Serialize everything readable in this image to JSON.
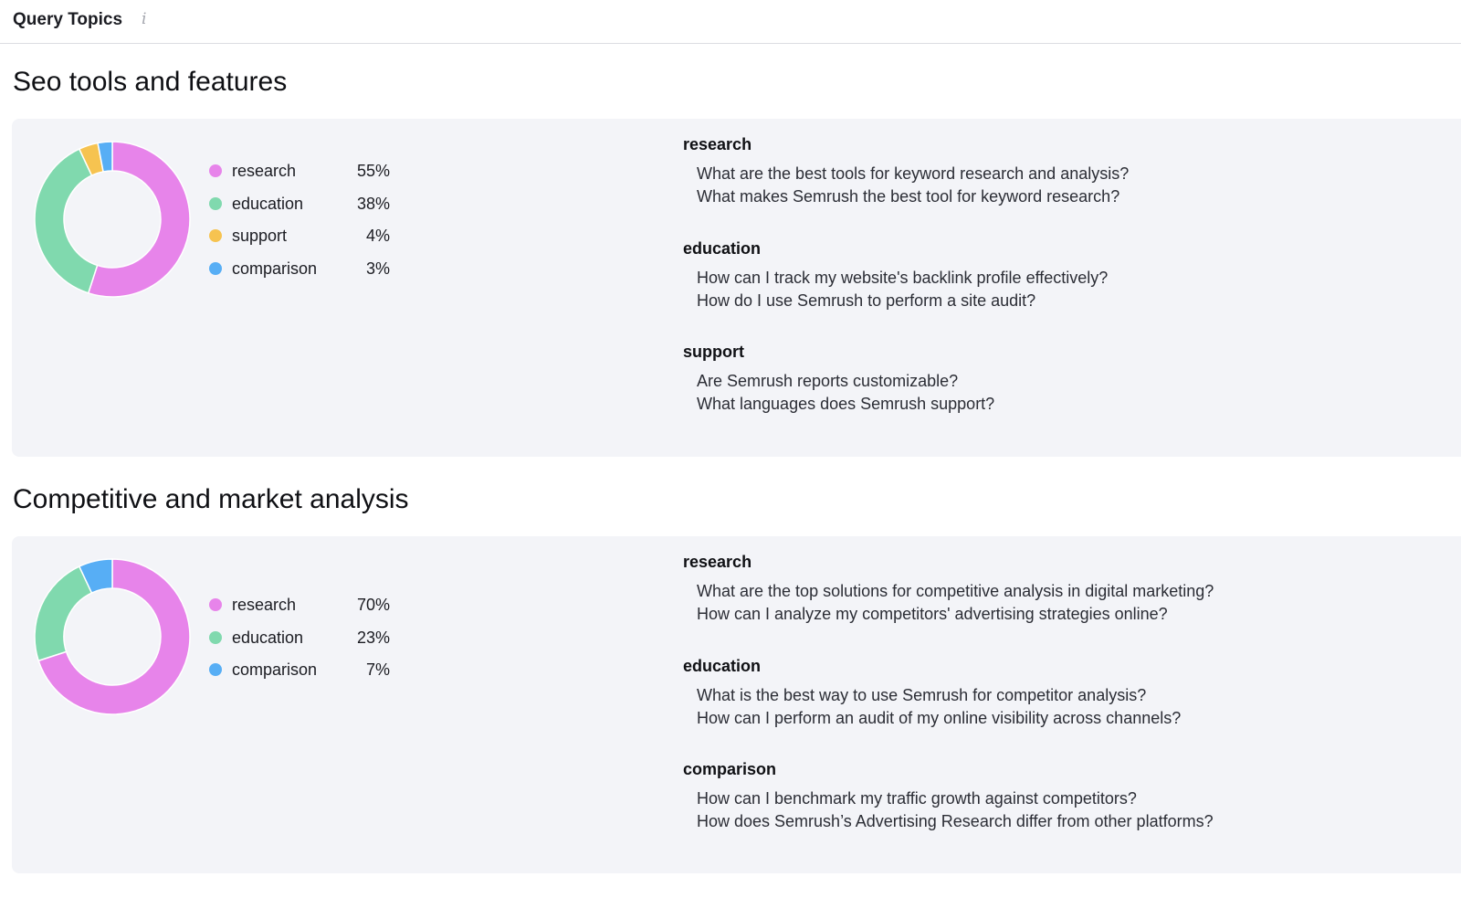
{
  "header": {
    "title": "Query Topics",
    "info_icon": "info-icon"
  },
  "sections": [
    {
      "title": "Seo tools and features",
      "legend": [
        {
          "label": "research",
          "value": "55%",
          "color": "#e784ea"
        },
        {
          "label": "education",
          "value": "38%",
          "color": "#80d9ae"
        },
        {
          "label": "support",
          "value": "4%",
          "color": "#f6c350"
        },
        {
          "label": "comparison",
          "value": "3%",
          "color": "#57aef5"
        }
      ],
      "groups": [
        {
          "title": "research",
          "items": [
            "What are the best tools for keyword research and analysis?",
            "What makes Semrush the best tool for keyword research?"
          ]
        },
        {
          "title": "education",
          "items": [
            "How can I track my website's backlink profile effectively?",
            "How do I use Semrush to perform a site audit?"
          ]
        },
        {
          "title": "support",
          "items": [
            "Are Semrush reports customizable?",
            "What languages does Semrush support?"
          ]
        }
      ]
    },
    {
      "title": "Competitive and market analysis",
      "legend": [
        {
          "label": "research",
          "value": "70%",
          "color": "#e784ea"
        },
        {
          "label": "education",
          "value": "23%",
          "color": "#80d9ae"
        },
        {
          "label": "comparison",
          "value": "7%",
          "color": "#57aef5"
        }
      ],
      "groups": [
        {
          "title": "research",
          "items": [
            "What are the top solutions for competitive analysis in digital marketing?",
            "How can I analyze my competitors' advertising strategies online?"
          ]
        },
        {
          "title": "education",
          "items": [
            "What is the best way to use Semrush for competitor analysis?",
            "How can I perform an audit of my online visibility across channels?"
          ]
        },
        {
          "title": "comparison",
          "items": [
            "How can I benchmark my traffic growth against competitors?",
            "How does Semrush’s Advertising Research differ from other platforms?"
          ]
        }
      ]
    }
  ],
  "chart_data": [
    {
      "type": "pie",
      "categories": [
        "research",
        "education",
        "support",
        "comparison"
      ],
      "values": [
        55,
        38,
        4,
        3
      ],
      "colors": [
        "#e784ea",
        "#80d9ae",
        "#f6c350",
        "#57aef5"
      ]
    },
    {
      "type": "pie",
      "categories": [
        "research",
        "education",
        "comparison"
      ],
      "values": [
        70,
        23,
        7
      ],
      "colors": [
        "#e784ea",
        "#80d9ae",
        "#57aef5"
      ]
    }
  ]
}
